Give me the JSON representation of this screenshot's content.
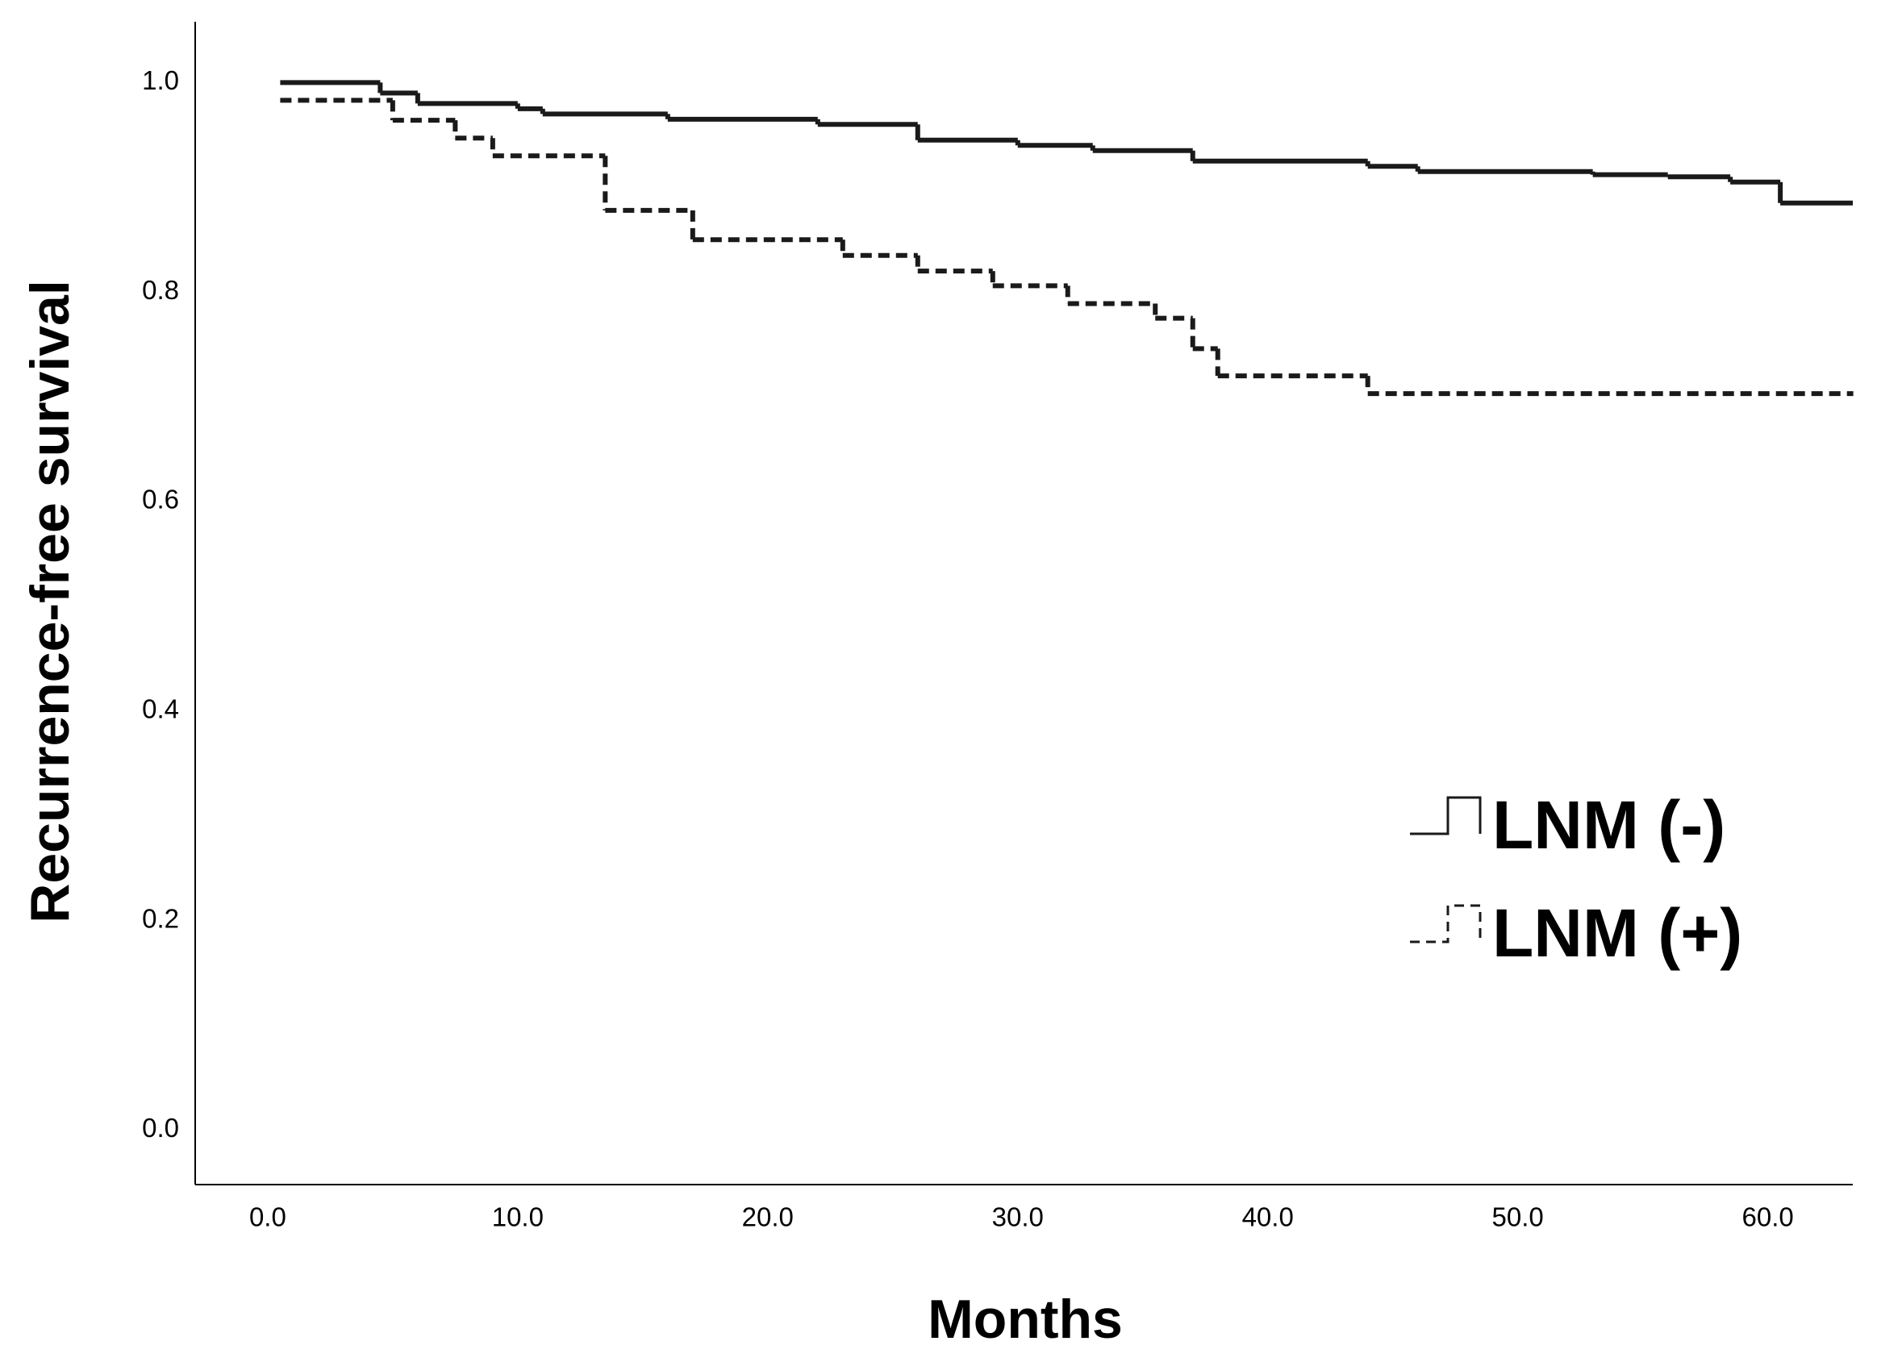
{
  "chart_data": {
    "type": "step",
    "y_label": "Recurrence-free survival",
    "x_label": "Months",
    "xlim": [
      -2.9,
      63.4
    ],
    "ylim": [
      -0.052,
      1.058
    ],
    "xticks": [
      {
        "value": 0,
        "label": "0.0"
      },
      {
        "value": 10,
        "label": "10.0"
      },
      {
        "value": 20,
        "label": "20.0"
      },
      {
        "value": 30,
        "label": "30.0"
      },
      {
        "value": 40,
        "label": "40.0"
      },
      {
        "value": 50,
        "label": "50.0"
      },
      {
        "value": 60,
        "label": "60.0"
      }
    ],
    "yticks": [
      {
        "value": 0,
        "label": "0.0"
      },
      0.2,
      0.4,
      0.6,
      0.8,
      {
        "value": 1,
        "label": "1.0"
      }
    ],
    "legend": "right",
    "series": [
      {
        "name": "LNM (-)",
        "color": "#1a1a1a",
        "dashed": false,
        "x": [
          0.5,
          4.5,
          6,
          10,
          11,
          16,
          22,
          26,
          30,
          33,
          37,
          44,
          46,
          53,
          56,
          58.5,
          60.5,
          63.4
        ],
        "values": [
          1.0,
          0.99,
          0.98,
          0.975,
          0.97,
          0.965,
          0.96,
          0.945,
          0.94,
          0.935,
          0.925,
          0.92,
          0.915,
          0.912,
          0.91,
          0.905,
          0.885,
          0.885
        ]
      },
      {
        "name": "LNM (+)",
        "color": "#1a1a1a",
        "dashed": true,
        "x": [
          0.5,
          5,
          7.5,
          9,
          13.5,
          17,
          23,
          26,
          29,
          32,
          35.5,
          37,
          38,
          44,
          63.4
        ],
        "values": [
          0.983,
          0.964,
          0.947,
          0.93,
          0.878,
          0.85,
          0.835,
          0.82,
          0.806,
          0.789,
          0.775,
          0.746,
          0.72,
          0.703,
          0.703
        ]
      }
    ]
  }
}
